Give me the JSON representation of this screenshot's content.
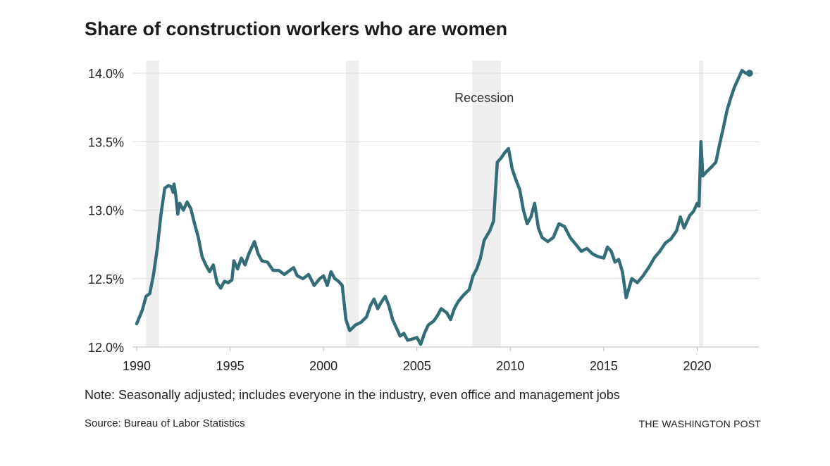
{
  "title": "Share of construction workers who are women",
  "note": "Note: Seasonally adjusted; includes everyone in the industry, even office and management jobs",
  "source": "Source: Bureau of Labor Statistics",
  "credit": "THE WASHINGTON POST",
  "colors": {
    "line": "#336e78",
    "recession": "#efefef",
    "grid": "#dcdcdc"
  },
  "chart_data": {
    "type": "line",
    "title": "Share of construction workers who are women",
    "xlabel": "",
    "ylabel": "",
    "xlim": [
      1990,
      2023.3
    ],
    "ylim": [
      12.0,
      14.0
    ],
    "grid": true,
    "x_ticks": [
      1990,
      1995,
      2000,
      2005,
      2010,
      2015,
      2020
    ],
    "x_tick_labels": [
      "1990",
      "1995",
      "2000",
      "2005",
      "2010",
      "2015",
      "2020"
    ],
    "y_ticks": [
      12.0,
      12.5,
      13.0,
      13.5,
      14.0
    ],
    "y_tick_labels": [
      "12.0%",
      "12.5%",
      "13.0%",
      "13.5%",
      "14.0%"
    ],
    "recessions": [
      {
        "start": 1990.5,
        "end": 1991.2
      },
      {
        "start": 2001.2,
        "end": 2001.9
      },
      {
        "start": 2007.95,
        "end": 2009.5
      },
      {
        "start": 2020.1,
        "end": 2020.33
      }
    ],
    "annotations": [
      {
        "text": "Recession",
        "x": 2008.6,
        "y": 13.82
      }
    ],
    "series": [
      {
        "x": [
          1990.0,
          1990.3,
          1990.5,
          1990.7,
          1990.9,
          1991.1,
          1991.3,
          1991.5,
          1991.7,
          1991.85,
          1991.95,
          1992.0,
          1992.1,
          1992.2,
          1992.3,
          1992.5,
          1992.7,
          1992.9,
          1993.1,
          1993.3,
          1993.5,
          1993.7,
          1993.9,
          1994.1,
          1994.3,
          1994.5,
          1994.7,
          1994.9,
          1995.1,
          1995.2,
          1995.4,
          1995.6,
          1995.8,
          1996.0,
          1996.3,
          1996.5,
          1996.7,
          1997.0,
          1997.3,
          1997.6,
          1997.9,
          1998.2,
          1998.4,
          1998.6,
          1998.9,
          1999.2,
          1999.5,
          1999.8,
          2000.0,
          2000.2,
          2000.4,
          2000.6,
          2000.8,
          2001.0,
          2001.2,
          2001.4,
          2001.7,
          2002.0,
          2002.3,
          2002.5,
          2002.7,
          2002.9,
          2003.1,
          2003.3,
          2003.5,
          2003.7,
          2003.9,
          2004.1,
          2004.3,
          2004.5,
          2004.8,
          2005.0,
          2005.2,
          2005.4,
          2005.6,
          2005.9,
          2006.1,
          2006.3,
          2006.6,
          2006.8,
          2007.0,
          2007.2,
          2007.5,
          2007.8,
          2008.0,
          2008.2,
          2008.4,
          2008.6,
          2008.9,
          2009.1,
          2009.3,
          2009.5,
          2009.7,
          2009.9,
          2010.1,
          2010.3,
          2010.5,
          2010.7,
          2010.9,
          2011.1,
          2011.3,
          2011.5,
          2011.7,
          2012.0,
          2012.3,
          2012.6,
          2012.9,
          2013.2,
          2013.5,
          2013.8,
          2014.1,
          2014.4,
          2014.7,
          2015.0,
          2015.2,
          2015.4,
          2015.6,
          2015.8,
          2016.0,
          2016.2,
          2016.5,
          2016.8,
          2017.1,
          2017.4,
          2017.7,
          2018.0,
          2018.3,
          2018.6,
          2018.9,
          2019.1,
          2019.3,
          2019.6,
          2019.8,
          2020.0,
          2020.1,
          2020.2,
          2020.3,
          2020.5,
          2020.8,
          2021.0,
          2021.2,
          2021.4,
          2021.6,
          2021.8,
          2022.0,
          2022.2,
          2022.4,
          2022.6,
          2022.8
        ],
        "values": [
          12.17,
          12.27,
          12.37,
          12.39,
          12.53,
          12.72,
          12.97,
          13.16,
          13.18,
          13.17,
          13.13,
          13.19,
          13.1,
          12.97,
          13.05,
          13.0,
          13.06,
          13.01,
          12.9,
          12.8,
          12.66,
          12.6,
          12.55,
          12.6,
          12.47,
          12.43,
          12.48,
          12.47,
          12.49,
          12.63,
          12.57,
          12.65,
          12.6,
          12.68,
          12.77,
          12.68,
          12.63,
          12.62,
          12.56,
          12.56,
          12.53,
          12.56,
          12.58,
          12.52,
          12.5,
          12.53,
          12.45,
          12.5,
          12.52,
          12.45,
          12.55,
          12.5,
          12.48,
          12.45,
          12.2,
          12.12,
          12.16,
          12.18,
          12.22,
          12.3,
          12.35,
          12.28,
          12.33,
          12.37,
          12.3,
          12.2,
          12.14,
          12.08,
          12.1,
          12.05,
          12.06,
          12.07,
          12.02,
          12.1,
          12.16,
          12.19,
          12.23,
          12.28,
          12.25,
          12.2,
          12.28,
          12.33,
          12.38,
          12.42,
          12.52,
          12.57,
          12.65,
          12.78,
          12.85,
          12.92,
          13.35,
          13.38,
          13.42,
          13.45,
          13.3,
          13.22,
          13.15,
          13.0,
          12.9,
          12.95,
          13.05,
          12.87,
          12.8,
          12.77,
          12.8,
          12.9,
          12.88,
          12.8,
          12.75,
          12.7,
          12.72,
          12.68,
          12.66,
          12.65,
          12.73,
          12.7,
          12.62,
          12.64,
          12.55,
          12.36,
          12.5,
          12.47,
          12.52,
          12.58,
          12.65,
          12.7,
          12.76,
          12.79,
          12.85,
          12.95,
          12.87,
          12.96,
          12.99,
          13.05,
          13.03,
          13.5,
          13.25,
          13.28,
          13.32,
          13.35,
          13.48,
          13.6,
          13.73,
          13.82,
          13.9,
          13.96,
          14.02,
          14.0,
          14.0
        ]
      }
    ]
  }
}
